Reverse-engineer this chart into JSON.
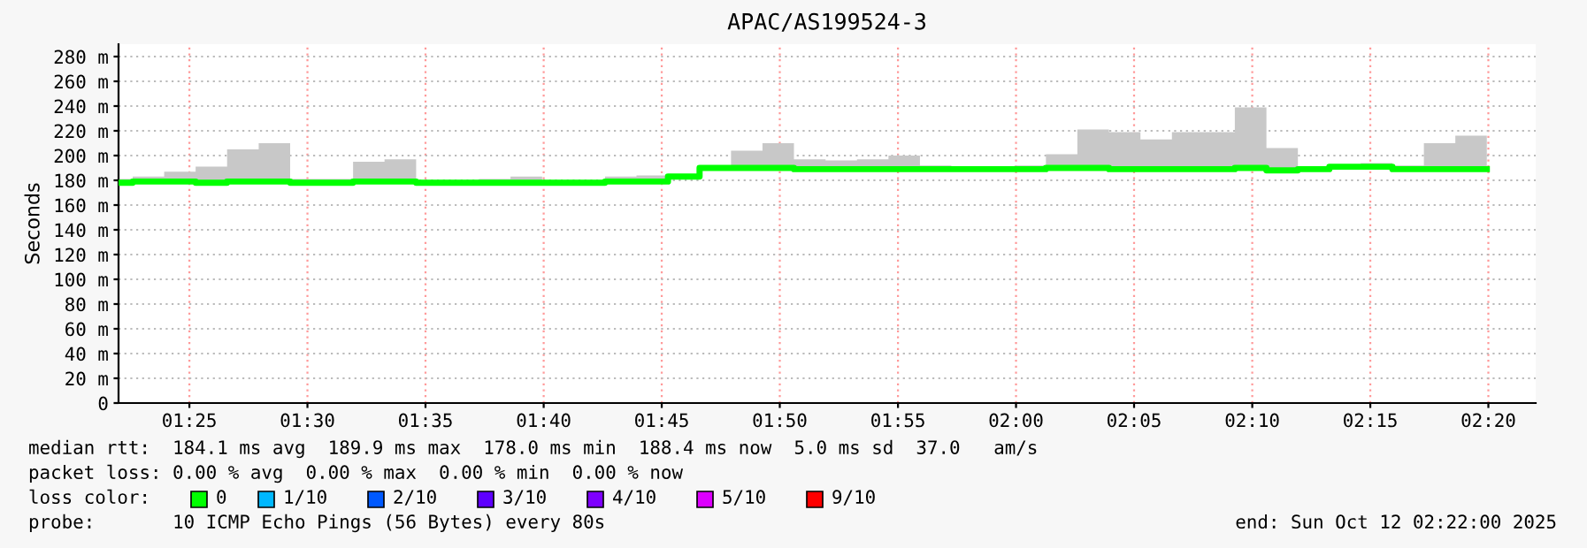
{
  "chart_data": {
    "type": "step",
    "title": "APAC/AS199524-3",
    "ylabel": "Seconds",
    "x": [
      1.3667,
      1.3767,
      1.3989,
      1.4211,
      1.4433,
      1.4656,
      1.4878,
      1.51,
      1.5322,
      1.5544,
      1.5767,
      1.5989,
      1.6211,
      1.6433,
      1.6656,
      1.6878,
      1.71,
      1.7322,
      1.7544,
      1.7767,
      1.7989,
      1.8211,
      1.8433,
      1.8656,
      1.8878,
      1.91,
      1.9322,
      1.9544,
      1.9767,
      1.9989,
      2.0211,
      2.0433,
      2.0656,
      2.0878,
      2.11,
      2.1322,
      2.1544,
      2.1767,
      2.1989,
      2.2211,
      2.2433,
      2.2656,
      2.2878,
      2.31,
      2.3322
    ],
    "series": [
      {
        "color": "#00ff00",
        "values": [
          178,
          179,
          179,
          178,
          179,
          179,
          178,
          178,
          179,
          179,
          178,
          178,
          178,
          178,
          178,
          178,
          179,
          179,
          183,
          190,
          190,
          190,
          189,
          189,
          189,
          189,
          189,
          189,
          189,
          189,
          190,
          190,
          189,
          189,
          189,
          189,
          190,
          188,
          189,
          191,
          191,
          189,
          189,
          189,
          189
        ],
        "lower": [
          177,
          178,
          178,
          177,
          178,
          178,
          177,
          177,
          178,
          178,
          177,
          177,
          177,
          177,
          177,
          177,
          178,
          178,
          182,
          189,
          189,
          189,
          188,
          188,
          188,
          188,
          188,
          188,
          188,
          188,
          189,
          189,
          188,
          188,
          188,
          188,
          189,
          187,
          188,
          190,
          190,
          188,
          188,
          188,
          188
        ],
        "upper": [
          181,
          183,
          187,
          191,
          205,
          210,
          181,
          181,
          195,
          197,
          180,
          180,
          181,
          183,
          180,
          180,
          183,
          184,
          184,
          192,
          204,
          210,
          197,
          196,
          197,
          200,
          192,
          190,
          190,
          192,
          201,
          221,
          219,
          213,
          219,
          219,
          239,
          206,
          190,
          192,
          194,
          192,
          210,
          216,
          216
        ]
      },
      {
        "name": "0",
        "color": "#00ff00",
        "values": [
          null,
          null,
          null,
          null,
          null,
          null,
          null,
          null,
          null,
          null,
          null,
          null,
          null,
          null,
          null,
          null,
          null,
          null,
          null,
          null,
          null,
          null,
          null,
          null,
          null,
          null,
          null,
          null,
          null,
          null,
          null,
          null,
          null,
          null,
          null,
          null,
          null,
          null,
          null,
          null,
          null,
          null,
          null,
          null,
          null
        ]
      },
      {
        "name": "1/10",
        "color": "#00b8ff",
        "values": [
          null,
          null,
          null,
          null,
          null,
          null,
          null,
          null,
          null,
          null,
          null,
          null,
          null,
          null,
          null,
          null,
          null,
          null,
          null,
          null,
          null,
          null,
          null,
          null,
          null,
          null,
          null,
          null,
          null,
          null,
          null,
          null,
          null,
          null,
          null,
          null,
          null,
          null,
          null,
          null,
          null,
          null,
          null,
          null,
          null
        ]
      },
      {
        "name": "2/10",
        "color": "#0059ff",
        "values": [
          null,
          null,
          null,
          null,
          null,
          null,
          null,
          null,
          null,
          null,
          null,
          null,
          null,
          null,
          null,
          null,
          null,
          null,
          null,
          null,
          null,
          null,
          null,
          null,
          null,
          null,
          null,
          null,
          null,
          null,
          null,
          null,
          null,
          null,
          null,
          null,
          null,
          null,
          null,
          null,
          null,
          null,
          null,
          null,
          null
        ]
      },
      {
        "name": "3/10",
        "color": "#5e00ff",
        "values": [
          null,
          null,
          null,
          null,
          null,
          null,
          null,
          null,
          null,
          null,
          null,
          null,
          null,
          null,
          null,
          null,
          null,
          null,
          null,
          null,
          null,
          null,
          null,
          null,
          null,
          null,
          null,
          null,
          null,
          null,
          null,
          null,
          null,
          null,
          null,
          null,
          null,
          null,
          null,
          null,
          null,
          null,
          null,
          null,
          null
        ]
      },
      {
        "name": "4/10",
        "color": "#7e00ff",
        "values": [
          null,
          null,
          null,
          null,
          null,
          null,
          null,
          null,
          null,
          null,
          null,
          null,
          null,
          null,
          null,
          null,
          null,
          null,
          null,
          null,
          null,
          null,
          null,
          null,
          null,
          null,
          null,
          null,
          null,
          null,
          null,
          null,
          null,
          null,
          null,
          null,
          null,
          null,
          null,
          null,
          null,
          null,
          null,
          null,
          null
        ]
      },
      {
        "name": "5/10",
        "color": "#dd00ff",
        "values": [
          null,
          null,
          null,
          null,
          null,
          null,
          null,
          null,
          null,
          null,
          null,
          null,
          null,
          null,
          null,
          null,
          null,
          null,
          null,
          null,
          null,
          null,
          null,
          null,
          null,
          null,
          null,
          null,
          null,
          null,
          null,
          null,
          null,
          null,
          null,
          null,
          null,
          null,
          null,
          null,
          null,
          null,
          null,
          null,
          null
        ]
      },
      {
        "name": "9/10",
        "color": "#ff0000",
        "values": [
          null,
          null,
          null,
          null,
          null,
          null,
          null,
          null,
          null,
          null,
          null,
          null,
          null,
          null,
          null,
          null,
          null,
          null,
          null,
          null,
          null,
          null,
          null,
          null,
          null,
          null,
          null,
          null,
          null,
          null,
          null,
          null,
          null,
          null,
          null,
          null,
          null,
          null,
          null,
          null,
          null,
          null,
          null,
          null,
          null
        ]
      }
    ],
    "legend": "bottom",
    "legend_title": "loss color:",
    "grid": true,
    "xlim": [
      1.3667,
      2.3667
    ],
    "xticks": [
      {
        "value": 1.4167,
        "label": "01:25"
      },
      {
        "value": 1.5,
        "label": "01:30"
      },
      {
        "value": 1.5833,
        "label": "01:35"
      },
      {
        "value": 1.6667,
        "label": "01:40"
      },
      {
        "value": 1.75,
        "label": "01:45"
      },
      {
        "value": 1.8333,
        "label": "01:50"
      },
      {
        "value": 1.9167,
        "label": "01:55"
      },
      {
        "value": 2.0,
        "label": "02:00"
      },
      {
        "value": 2.0833,
        "label": "02:05"
      },
      {
        "value": 2.1667,
        "label": "02:10"
      },
      {
        "value": 2.25,
        "label": "02:15"
      },
      {
        "value": 2.3333,
        "label": "02:20"
      }
    ],
    "ylim": [
      0,
      290
    ],
    "yticks": [
      0,
      {
        "value": 20,
        "label": "20 m"
      },
      {
        "value": 40,
        "label": "40 m"
      },
      {
        "value": 60,
        "label": "60 m"
      },
      {
        "value": 80,
        "label": "80 m"
      },
      {
        "value": 100,
        "label": "100 m"
      },
      {
        "value": 120,
        "label": "120 m"
      },
      {
        "value": 140,
        "label": "140 m"
      },
      {
        "value": 160,
        "label": "160 m"
      },
      {
        "value": 180,
        "label": "180 m"
      },
      {
        "value": 200,
        "label": "200 m"
      },
      {
        "value": 220,
        "label": "220 m"
      },
      {
        "value": 240,
        "label": "240 m"
      },
      {
        "value": 260,
        "label": "260 m"
      },
      {
        "value": 280,
        "label": "280 m"
      }
    ],
    "annotations": [
      "median rtt:  184.1 ms avg  189.9 ms max  178.0 ms min  188.4 ms now  5.0 ms sd  37.0   am/s",
      "packet loss: 0.00 % avg  0.00 % max  0.00 % min  0.00 % now",
      "probe:       10 ICMP Echo Pings (56 Bytes) every 80s",
      "end: Sun Oct 12 02:22:00 2025"
    ]
  }
}
